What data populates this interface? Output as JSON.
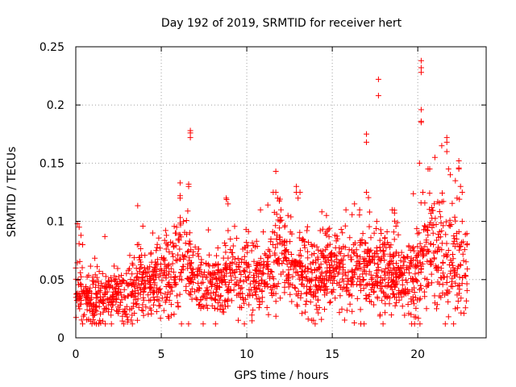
{
  "chart_data": {
    "type": "scatter",
    "title": "Day 192 of 2019, SRMTID for receiver hert",
    "xlabel": "GPS time / hours",
    "ylabel": "SRMTID / TECUs",
    "xlim": [
      0,
      24
    ],
    "ylim": [
      0,
      0.25
    ],
    "xticks": [
      0,
      5,
      10,
      15,
      20
    ],
    "xtick_labels": [
      "0",
      "5",
      "10",
      "15",
      "20"
    ],
    "yticks": [
      0,
      0.05,
      0.1,
      0.15,
      0.2,
      0.25
    ],
    "ytick_labels": [
      "0",
      "0.05",
      "0.1",
      "0.15",
      "0.2",
      "0.25"
    ],
    "grid": true,
    "marker": "plus",
    "color": "#ff0000",
    "x_range_data": [
      0,
      22.9
    ],
    "n_points": 2000,
    "points_note": "approximate series: dense cloud of ~2000 observations, values mostly 0.015–0.12 TECU with isolated spikes",
    "points": [
      {
        "x": 0.0,
        "y": 0.06
      },
      {
        "x": 0.1,
        "y": 0.098
      },
      {
        "x": 0.2,
        "y": 0.095
      },
      {
        "x": 0.3,
        "y": 0.088
      },
      {
        "x": 0.4,
        "y": 0.08
      },
      {
        "x": 0.5,
        "y": 0.02
      },
      {
        "x": 1.7,
        "y": 0.087
      },
      {
        "x": 3.6,
        "y": 0.08
      },
      {
        "x": 4.5,
        "y": 0.09
      },
      {
        "x": 4.7,
        "y": 0.075
      },
      {
        "x": 5.3,
        "y": 0.088
      },
      {
        "x": 5.9,
        "y": 0.095
      },
      {
        "x": 6.1,
        "y": 0.133
      },
      {
        "x": 6.1,
        "y": 0.122
      },
      {
        "x": 6.1,
        "y": 0.12
      },
      {
        "x": 6.3,
        "y": 0.1
      },
      {
        "x": 6.6,
        "y": 0.13
      },
      {
        "x": 6.6,
        "y": 0.132
      },
      {
        "x": 6.7,
        "y": 0.178
      },
      {
        "x": 6.7,
        "y": 0.176
      },
      {
        "x": 6.7,
        "y": 0.172
      },
      {
        "x": 8.8,
        "y": 0.12
      },
      {
        "x": 8.9,
        "y": 0.115
      },
      {
        "x": 10.8,
        "y": 0.11
      },
      {
        "x": 11.7,
        "y": 0.143
      },
      {
        "x": 11.7,
        "y": 0.125
      },
      {
        "x": 11.8,
        "y": 0.12
      },
      {
        "x": 12.0,
        "y": 0.11
      },
      {
        "x": 12.9,
        "y": 0.13
      },
      {
        "x": 12.9,
        "y": 0.125
      },
      {
        "x": 13.0,
        "y": 0.12
      },
      {
        "x": 15.8,
        "y": 0.11
      },
      {
        "x": 16.3,
        "y": 0.115
      },
      {
        "x": 16.6,
        "y": 0.11
      },
      {
        "x": 17.0,
        "y": 0.175
      },
      {
        "x": 17.0,
        "y": 0.168
      },
      {
        "x": 17.0,
        "y": 0.125
      },
      {
        "x": 17.6,
        "y": 0.1
      },
      {
        "x": 17.7,
        "y": 0.222
      },
      {
        "x": 17.7,
        "y": 0.208
      },
      {
        "x": 17.8,
        "y": 0.02
      },
      {
        "x": 18.5,
        "y": 0.11
      },
      {
        "x": 20.1,
        "y": 0.15
      },
      {
        "x": 20.2,
        "y": 0.196
      },
      {
        "x": 20.2,
        "y": 0.186
      },
      {
        "x": 20.2,
        "y": 0.185
      },
      {
        "x": 20.2,
        "y": 0.238
      },
      {
        "x": 20.2,
        "y": 0.232
      },
      {
        "x": 20.2,
        "y": 0.228
      },
      {
        "x": 20.3,
        "y": 0.125
      },
      {
        "x": 20.6,
        "y": 0.145
      },
      {
        "x": 20.7,
        "y": 0.145
      },
      {
        "x": 21.0,
        "y": 0.155
      },
      {
        "x": 21.4,
        "y": 0.165
      },
      {
        "x": 21.7,
        "y": 0.172
      },
      {
        "x": 21.7,
        "y": 0.168
      },
      {
        "x": 21.7,
        "y": 0.16
      },
      {
        "x": 21.8,
        "y": 0.145
      },
      {
        "x": 21.9,
        "y": 0.14
      },
      {
        "x": 22.2,
        "y": 0.135
      },
      {
        "x": 22.3,
        "y": 0.12
      },
      {
        "x": 22.4,
        "y": 0.152
      },
      {
        "x": 22.4,
        "y": 0.146
      },
      {
        "x": 22.4,
        "y": 0.145
      },
      {
        "x": 22.5,
        "y": 0.13
      },
      {
        "x": 22.6,
        "y": 0.125
      },
      {
        "x": 22.6,
        "y": 0.1
      },
      {
        "x": 22.2,
        "y": 0.025
      },
      {
        "x": 21.0,
        "y": 0.03
      },
      {
        "x": 21.1,
        "y": 0.025
      },
      {
        "x": 19.6,
        "y": 0.02
      },
      {
        "x": 19.8,
        "y": 0.018
      },
      {
        "x": 13.8,
        "y": 0.015
      },
      {
        "x": 13.9,
        "y": 0.015
      },
      {
        "x": 9.5,
        "y": 0.015
      },
      {
        "x": 1.1,
        "y": 0.013
      },
      {
        "x": 1.4,
        "y": 0.015
      },
      {
        "x": 0.4,
        "y": 0.012
      }
    ],
    "profile": [
      [
        0.0,
        0.04,
        0.014
      ],
      [
        0.5,
        0.033,
        0.013
      ],
      [
        1.0,
        0.03,
        0.011
      ],
      [
        1.5,
        0.033,
        0.012
      ],
      [
        2.0,
        0.035,
        0.012
      ],
      [
        2.5,
        0.036,
        0.012
      ],
      [
        3.0,
        0.038,
        0.013
      ],
      [
        3.5,
        0.044,
        0.014
      ],
      [
        4.0,
        0.047,
        0.014
      ],
      [
        4.5,
        0.048,
        0.014
      ],
      [
        5.0,
        0.05,
        0.016
      ],
      [
        5.5,
        0.055,
        0.017
      ],
      [
        6.0,
        0.063,
        0.02
      ],
      [
        6.5,
        0.06,
        0.02
      ],
      [
        7.0,
        0.05,
        0.017
      ],
      [
        7.5,
        0.046,
        0.015
      ],
      [
        8.0,
        0.045,
        0.015
      ],
      [
        8.5,
        0.049,
        0.016
      ],
      [
        9.0,
        0.058,
        0.018
      ],
      [
        9.5,
        0.052,
        0.017
      ],
      [
        10.0,
        0.055,
        0.017
      ],
      [
        10.5,
        0.055,
        0.017
      ],
      [
        11.0,
        0.056,
        0.018
      ],
      [
        11.5,
        0.062,
        0.02
      ],
      [
        12.0,
        0.07,
        0.02
      ],
      [
        12.5,
        0.06,
        0.019
      ],
      [
        13.0,
        0.058,
        0.019
      ],
      [
        13.5,
        0.052,
        0.018
      ],
      [
        14.0,
        0.05,
        0.018
      ],
      [
        14.5,
        0.06,
        0.019
      ],
      [
        15.0,
        0.058,
        0.018
      ],
      [
        15.5,
        0.06,
        0.018
      ],
      [
        16.0,
        0.06,
        0.018
      ],
      [
        16.5,
        0.062,
        0.019
      ],
      [
        17.0,
        0.063,
        0.02
      ],
      [
        17.5,
        0.06,
        0.019
      ],
      [
        18.0,
        0.056,
        0.018
      ],
      [
        18.5,
        0.056,
        0.018
      ],
      [
        19.0,
        0.052,
        0.017
      ],
      [
        19.5,
        0.05,
        0.017
      ],
      [
        20.0,
        0.055,
        0.02
      ],
      [
        20.5,
        0.075,
        0.025
      ],
      [
        21.0,
        0.07,
        0.024
      ],
      [
        21.5,
        0.068,
        0.024
      ],
      [
        22.0,
        0.06,
        0.022
      ],
      [
        22.5,
        0.062,
        0.022
      ],
      [
        22.9,
        0.06,
        0.022
      ]
    ]
  }
}
